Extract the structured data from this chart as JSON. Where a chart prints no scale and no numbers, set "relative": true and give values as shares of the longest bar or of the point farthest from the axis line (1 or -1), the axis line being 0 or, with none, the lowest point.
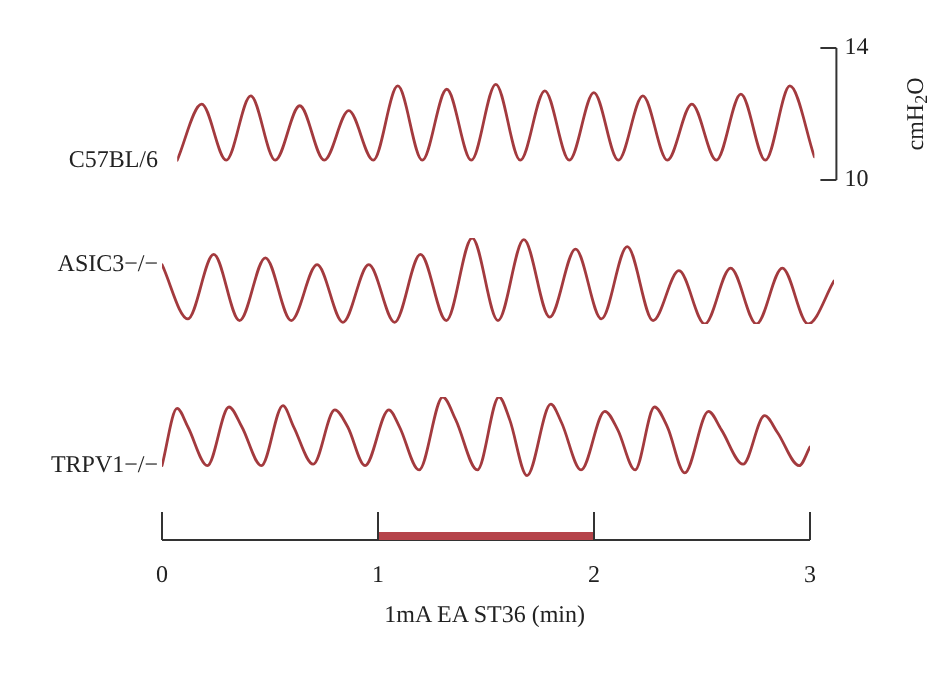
{
  "chart_data": [
    {
      "type": "line",
      "categories": [
        null,
        null,
        null,
        null,
        null,
        null,
        null,
        null,
        null,
        null,
        null,
        null,
        null,
        null,
        null,
        null,
        null,
        null,
        null,
        null,
        null,
        null,
        null,
        null,
        null,
        null,
        null
      ],
      "ylim": [
        10,
        14
      ],
      "yticks": [
        10,
        14
      ],
      "ylabel": "cmH$_{2}$O",
      "tick_labels": "y",
      "marker": "none",
      "series": [
        {
          "name": "C57BL/6",
          "color": "#a33a3e",
          "values": [
            10.6,
            12.3,
            10.6,
            12.55,
            10.6,
            12.25,
            10.6,
            12.1,
            10.6,
            12.85,
            10.6,
            12.75,
            10.6,
            12.9,
            10.6,
            12.7,
            10.6,
            12.65,
            10.6,
            12.55,
            10.6,
            12.3,
            10.6,
            12.6,
            10.6,
            12.85,
            10.7
          ]
        }
      ]
    },
    {
      "type": "line",
      "relative": true,
      "categories": [
        null,
        null,
        null,
        null,
        null,
        null,
        null,
        null,
        null,
        null,
        null,
        null,
        null,
        null,
        null,
        null,
        null,
        null,
        null,
        null,
        null,
        null,
        null,
        null,
        null,
        null,
        null
      ],
      "marker": "none",
      "series": [
        {
          "name": "ASIC3−/−",
          "color": "#a33a3e",
          "values": [
            0.69,
            0.06,
            0.81,
            0.04,
            0.77,
            0.04,
            0.69,
            0.02,
            0.69,
            0.02,
            0.81,
            0.04,
            1,
            0.04,
            0.98,
            0.08,
            0.87,
            0.06,
            0.9,
            0.04,
            0.62,
            0,
            0.65,
            0,
            0.65,
            0,
            0.5
          ]
        }
      ]
    },
    {
      "type": "line",
      "relative": true,
      "xlim": [
        0,
        3
      ],
      "xticks": [
        0,
        1,
        2,
        3
      ],
      "xlabel": "1mA EA ST36 (min)",
      "tick_labels": "x",
      "marker": "none",
      "bands": [
        {
          "axis": "x",
          "from": 1,
          "to": 2,
          "color": "#b5444a"
        }
      ],
      "series": [
        {
          "name": "TRPV1−/−",
          "color": "#a33a3e",
          "x": [
            0,
            0.07,
            0.12,
            0.21,
            0.31,
            0.37,
            0.46,
            0.56,
            0.61,
            0.7,
            0.8,
            0.86,
            0.94,
            1.05,
            1.1,
            1.19,
            1.3,
            1.36,
            1.46,
            1.56,
            1.61,
            1.69,
            1.8,
            1.85,
            1.94,
            2.05,
            2.11,
            2.19,
            2.28,
            2.34,
            2.42,
            2.53,
            2.59,
            2.69,
            2.79,
            2.85,
            2.95,
            3
          ],
          "values": [
            0.52,
            0.92,
            0.79,
            0.52,
            0.93,
            0.79,
            0.52,
            0.94,
            0.79,
            0.53,
            0.91,
            0.79,
            0.52,
            0.91,
            0.79,
            0.49,
            1,
            0.84,
            0.49,
            1,
            0.84,
            0.45,
            0.95,
            0.82,
            0.49,
            0.9,
            0.77,
            0.49,
            0.93,
            0.79,
            0.47,
            0.9,
            0.77,
            0.53,
            0.87,
            0.75,
            0.52,
            0.65
          ]
        }
      ]
    }
  ]
}
